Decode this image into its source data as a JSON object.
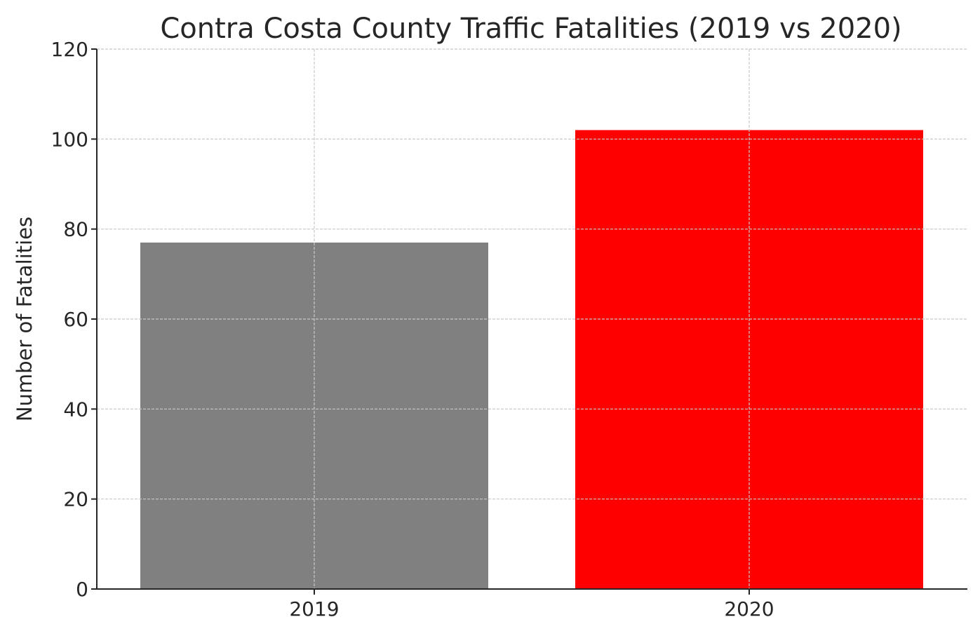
{
  "chart_data": {
    "type": "bar",
    "title": "Contra Costa County Traffic Fatalities (2019 vs 2020)",
    "xlabel": "",
    "ylabel": "Number of Fatalities",
    "categories": [
      "2019",
      "2020"
    ],
    "values": [
      77,
      102
    ],
    "colors": [
      "#808080",
      "#ff0000"
    ],
    "ylim": [
      0,
      120
    ],
    "yticks": [
      "0",
      "20",
      "40",
      "60",
      "80",
      "100",
      "120"
    ],
    "grid": true
  }
}
